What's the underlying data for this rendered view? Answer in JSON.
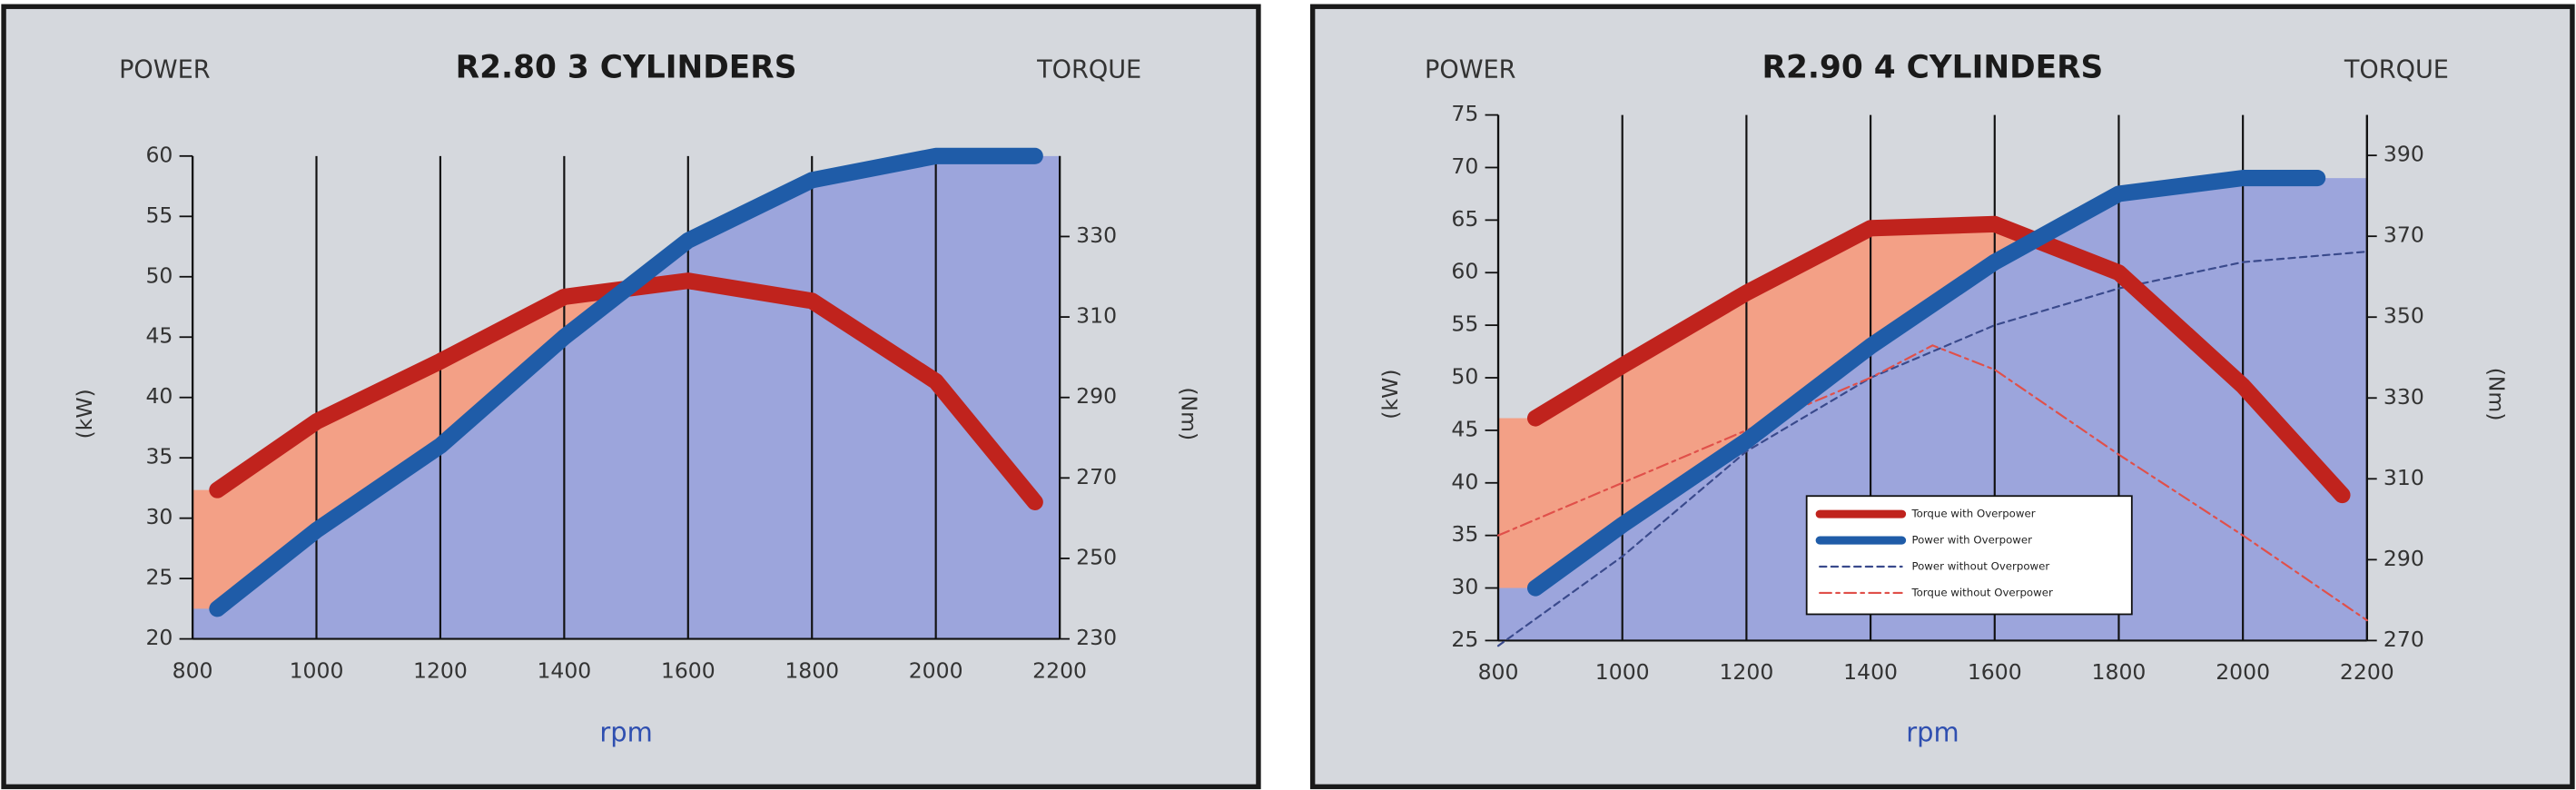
{
  "chart_data": [
    {
      "type": "line",
      "title": "R2.80 3 CYLINDERS",
      "left_label": "POWER",
      "right_label": "TORQUE",
      "ylabel": "(kW)",
      "y2label": "(Nm)",
      "xlabel": "rpm",
      "xlim": [
        800,
        2200
      ],
      "xticks": [
        800,
        1000,
        1200,
        1400,
        1600,
        1800,
        2000,
        2200
      ],
      "ylim": [
        20,
        60
      ],
      "yticks": [
        20,
        25,
        30,
        35,
        40,
        45,
        50,
        55,
        60
      ],
      "y2lim": [
        230,
        350
      ],
      "y2ticks": [
        230,
        250,
        270,
        290,
        310,
        330
      ],
      "grid": "x",
      "series": [
        {
          "color": "#c0231d",
          "style": "thick",
          "fill": "#f3a086",
          "axis": "y2",
          "x": [
            840,
            1000,
            1200,
            1400,
            1600,
            1800,
            2000,
            2160
          ],
          "values": [
            267,
            284,
            299,
            315,
            319,
            314,
            294,
            264
          ]
        },
        {
          "color": "#1f5ca8",
          "style": "thick",
          "fill": "#9ca5dc",
          "x": [
            840,
            1000,
            1200,
            1400,
            1600,
            1800,
            2000,
            2160
          ],
          "values": [
            22.5,
            29,
            36,
            45,
            53,
            58,
            60,
            60
          ]
        }
      ]
    },
    {
      "type": "line",
      "title": "R2.90 4 CYLINDERS",
      "left_label": "POWER",
      "right_label": "TORQUE",
      "ylabel": "(kW)",
      "y2label": "(Nm)",
      "xlabel": "rpm",
      "xlim": [
        800,
        2200
      ],
      "xticks": [
        800,
        1000,
        1200,
        1400,
        1600,
        1800,
        2000,
        2200
      ],
      "ylim": [
        25,
        75
      ],
      "yticks": [
        25,
        30,
        35,
        40,
        45,
        50,
        55,
        60,
        65,
        70,
        75
      ],
      "y2lim": [
        270,
        400
      ],
      "y2ticks": [
        270,
        290,
        310,
        330,
        350,
        370,
        390
      ],
      "grid": "x",
      "legend": "lower right",
      "series": [
        {
          "name": "Torque with Overpower",
          "color": "#c0231d",
          "style": "thick",
          "fill": "#f3a086",
          "axis": "y2",
          "x": [
            860,
            1000,
            1200,
            1400,
            1600,
            1800,
            2000,
            2160
          ],
          "values": [
            325,
            338,
            356,
            372,
            373,
            361,
            333,
            306
          ]
        },
        {
          "name": "Power with Overpower",
          "color": "#1f5ca8",
          "style": "thick",
          "fill": "#9ca5dc",
          "x": [
            860,
            1000,
            1200,
            1400,
            1600,
            1800,
            2000,
            2120
          ],
          "values": [
            30,
            36,
            44,
            53,
            61,
            67.5,
            69,
            69
          ]
        },
        {
          "name": "Power without Overpower",
          "color": "#3a4a8c",
          "style": "dash",
          "x": [
            800,
            1000,
            1200,
            1400,
            1600,
            1800,
            2000,
            2200
          ],
          "values": [
            24.5,
            33,
            43,
            50,
            55,
            58.5,
            61,
            62
          ]
        },
        {
          "name": "Torque without Overpower",
          "color": "#e0504a",
          "style": "dashdot",
          "axis": "y2",
          "x": [
            800,
            1000,
            1200,
            1400,
            1500,
            1600,
            1800,
            2000,
            2200
          ],
          "values": [
            296,
            309,
            322,
            335,
            343,
            337,
            316,
            296,
            275
          ]
        }
      ]
    }
  ]
}
